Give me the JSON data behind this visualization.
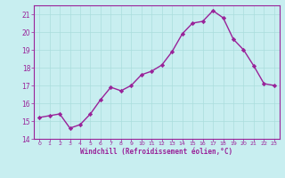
{
  "x": [
    0,
    1,
    2,
    3,
    4,
    5,
    6,
    7,
    8,
    9,
    10,
    11,
    12,
    13,
    14,
    15,
    16,
    17,
    18,
    19,
    20,
    21,
    22,
    23
  ],
  "y": [
    15.2,
    15.3,
    15.4,
    14.6,
    14.8,
    15.4,
    16.2,
    16.9,
    16.7,
    17.0,
    17.6,
    17.8,
    18.15,
    18.9,
    19.9,
    20.5,
    20.6,
    21.2,
    20.8,
    19.6,
    19.0,
    18.1,
    17.1,
    17.0
  ],
  "line_color": "#992299",
  "marker": "D",
  "marker_size": 2.2,
  "bg_color": "#c8eef0",
  "grid_color": "#aadddd",
  "xlabel": "Windchill (Refroidissement éolien,°C)",
  "xlabel_color": "#992299",
  "tick_color": "#992299",
  "spine_color": "#992299",
  "ylim": [
    14,
    21.5
  ],
  "xlim": [
    -0.5,
    23.5
  ],
  "yticks": [
    14,
    15,
    16,
    17,
    18,
    19,
    20,
    21
  ],
  "xticks": [
    0,
    1,
    2,
    3,
    4,
    5,
    6,
    7,
    8,
    9,
    10,
    11,
    12,
    13,
    14,
    15,
    16,
    17,
    18,
    19,
    20,
    21,
    22,
    23
  ],
  "linewidth": 1.0,
  "figsize": [
    3.2,
    2.0
  ],
  "dpi": 100
}
